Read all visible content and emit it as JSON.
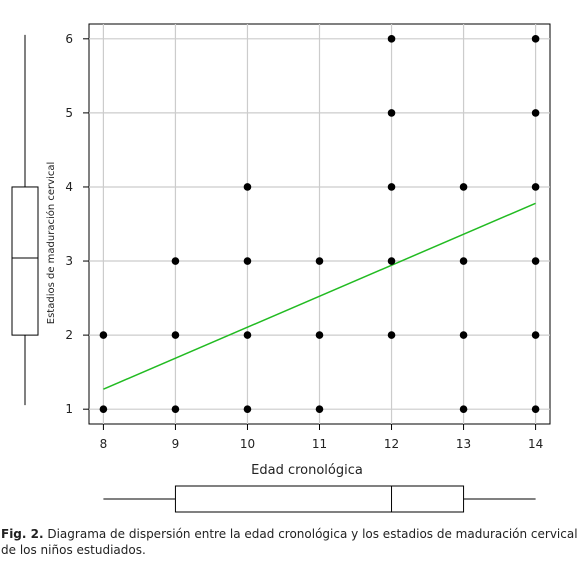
{
  "chart_data": {
    "type": "scatter",
    "xlabel": "Edad cronológica",
    "ylabel": "Estadios de maduración cervical",
    "xlim": [
      7.8,
      14.2
    ],
    "ylim": [
      0.8,
      6.2
    ],
    "xticks": [
      "8",
      "9",
      "10",
      "11",
      "12",
      "13",
      "14"
    ],
    "yticks": [
      "1",
      "2",
      "3",
      "4",
      "5",
      "6"
    ],
    "grid": true,
    "points": [
      {
        "x": 8,
        "y": 1
      },
      {
        "x": 8,
        "y": 2
      },
      {
        "x": 9,
        "y": 1
      },
      {
        "x": 9,
        "y": 2
      },
      {
        "x": 9,
        "y": 3
      },
      {
        "x": 10,
        "y": 1
      },
      {
        "x": 10,
        "y": 2
      },
      {
        "x": 10,
        "y": 3
      },
      {
        "x": 10,
        "y": 4
      },
      {
        "x": 11,
        "y": 1
      },
      {
        "x": 11,
        "y": 2
      },
      {
        "x": 11,
        "y": 3
      },
      {
        "x": 12,
        "y": 2
      },
      {
        "x": 12,
        "y": 3
      },
      {
        "x": 12,
        "y": 4
      },
      {
        "x": 12,
        "y": 5
      },
      {
        "x": 12,
        "y": 6
      },
      {
        "x": 13,
        "y": 1
      },
      {
        "x": 13,
        "y": 2
      },
      {
        "x": 13,
        "y": 3
      },
      {
        "x": 13,
        "y": 4
      },
      {
        "x": 14,
        "y": 1
      },
      {
        "x": 14,
        "y": 2
      },
      {
        "x": 14,
        "y": 3
      },
      {
        "x": 14,
        "y": 4
      },
      {
        "x": 14,
        "y": 5
      },
      {
        "x": 14,
        "y": 6
      }
    ],
    "regression_line": {
      "x": [
        8,
        14
      ],
      "y": [
        1.27,
        3.78
      ],
      "color": "#22bb22"
    },
    "marginal_boxplot_x": {
      "min": 8,
      "q1": 9,
      "median": 12,
      "q3": 13,
      "max": 14
    },
    "marginal_boxplot_y": {
      "min": 1,
      "q1": 2,
      "median": 3,
      "q3": 4,
      "max": 6
    },
    "colors": {
      "points": "#000000",
      "grid": "#cccccc",
      "axis": "#000000"
    }
  },
  "caption": {
    "label": "Fig. 2.",
    "text": " Diagrama de dispersión entre la edad cronológica y los estadios de maduración cervical de los niños estudiados."
  }
}
